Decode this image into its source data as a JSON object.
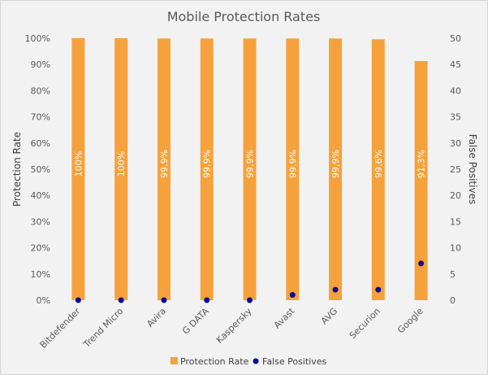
{
  "chart_data": {
    "type": "bar",
    "title": "Mobile Protection Rates",
    "categories": [
      "Bitdefender",
      "Trend Micro",
      "Avira",
      "G DATA",
      "Kaspersky",
      "Avast",
      "AVG",
      "Securion",
      "Google"
    ],
    "series": [
      {
        "name": "Protection Rate",
        "type": "bar",
        "axis": "left",
        "color": "#f5a23c",
        "values": [
          100,
          100,
          99.9,
          99.9,
          99.9,
          99.9,
          99.9,
          99.6,
          91.3
        ],
        "labels": [
          "100%",
          "100%",
          "99,9%",
          "99,9%",
          "99,9%",
          "99,9%",
          "99,9%",
          "99,6%",
          "91,3%"
        ]
      },
      {
        "name": "False Positives",
        "type": "scatter",
        "axis": "right",
        "color": "#0a0a96",
        "values": [
          0,
          0,
          0,
          0,
          0,
          1,
          2,
          2,
          7
        ]
      }
    ],
    "ylabel": "Protection Rate",
    "y2label": "False Positives",
    "ylim": [
      0,
      100
    ],
    "y2lim": [
      0,
      50
    ],
    "yticks": [
      "0%",
      "10%",
      "20%",
      "30%",
      "40%",
      "50%",
      "60%",
      "70%",
      "80%",
      "90%",
      "100%"
    ],
    "y2ticks": [
      "0",
      "5",
      "10",
      "15",
      "20",
      "25",
      "30",
      "35",
      "40",
      "45",
      "50"
    ],
    "legend": "bottom",
    "grid": false
  }
}
